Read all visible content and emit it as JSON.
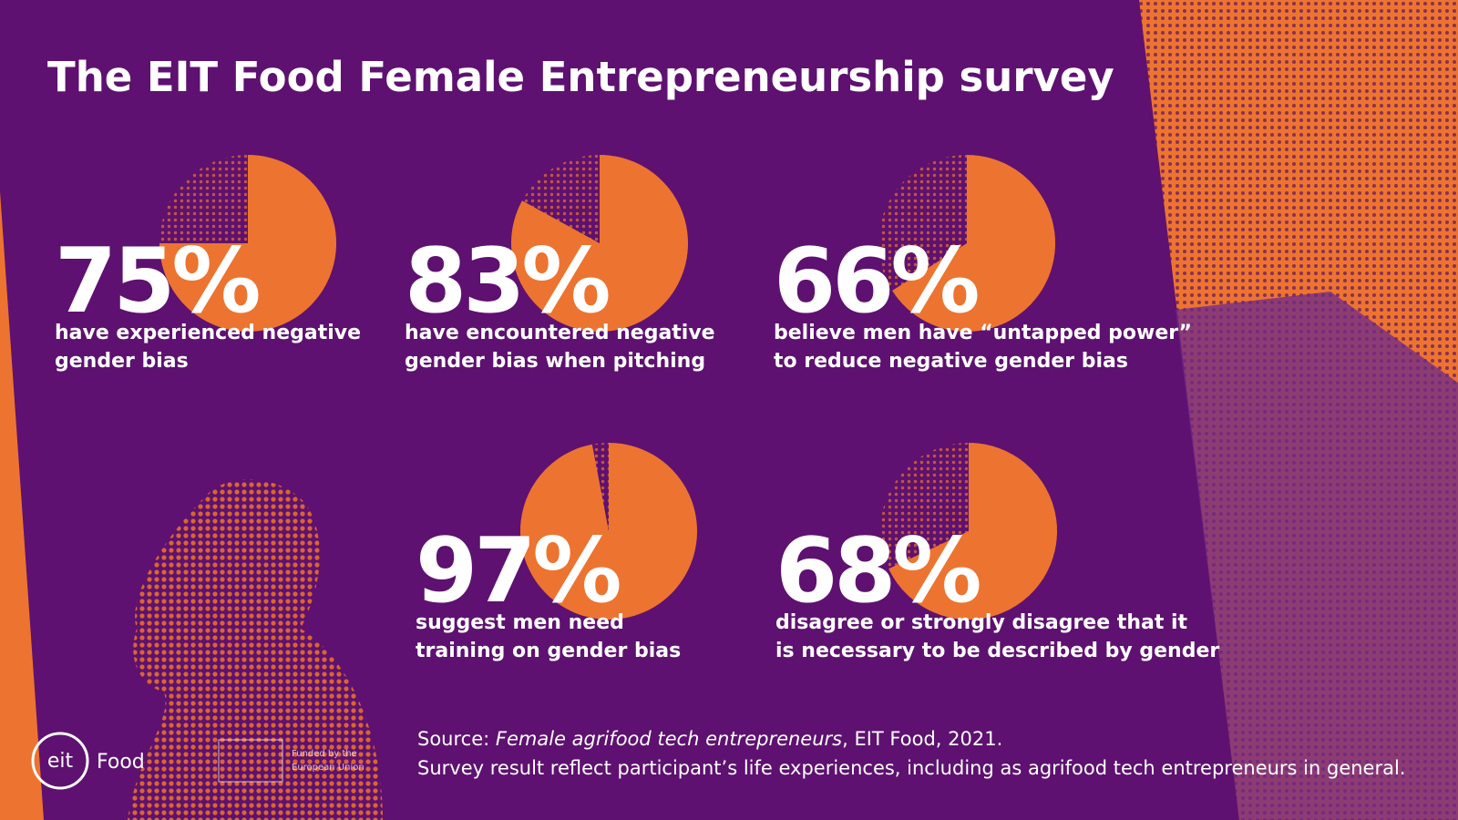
{
  "title": "The EIT Food Female Entrepreneurship survey",
  "chart_data": [
    {
      "type": "pie",
      "values": [
        75
      ],
      "value_labels": [
        "75%"
      ],
      "color": "#ec7430",
      "caption": [
        "have experienced negative",
        "gender bias"
      ]
    },
    {
      "type": "pie",
      "values": [
        83
      ],
      "value_labels": [
        "83%"
      ],
      "color": "#ec7430",
      "caption": [
        "have encountered negative",
        "gender bias when pitching"
      ]
    },
    {
      "type": "pie",
      "values": [
        66
      ],
      "value_labels": [
        "66%"
      ],
      "color": "#ec7430",
      "caption": [
        "believe men have “untapped power”",
        "to reduce negative gender bias"
      ]
    },
    {
      "type": "pie",
      "values": [
        97
      ],
      "value_labels": [
        "97%"
      ],
      "color": "#ec7430",
      "caption": [
        "suggest men need",
        "training on gender bias"
      ]
    },
    {
      "type": "pie",
      "values": [
        68
      ],
      "value_labels": [
        "68%"
      ],
      "color": "#ec7430",
      "caption": [
        "disagree or strongly disagree that it",
        "is necessary to be described by gender"
      ]
    }
  ],
  "source": {
    "prefix": "Source: ",
    "italic": "Female agrifood tech entrepreneurs",
    "suffix": ", EIT Food, 2021."
  },
  "note": "Survey result reflect participant’s life experiences, including as agrifood tech entrepreneurs in general.",
  "logo": {
    "eit": "eit",
    "food": "Food",
    "eu": [
      "Funded by the",
      "European Union"
    ]
  }
}
